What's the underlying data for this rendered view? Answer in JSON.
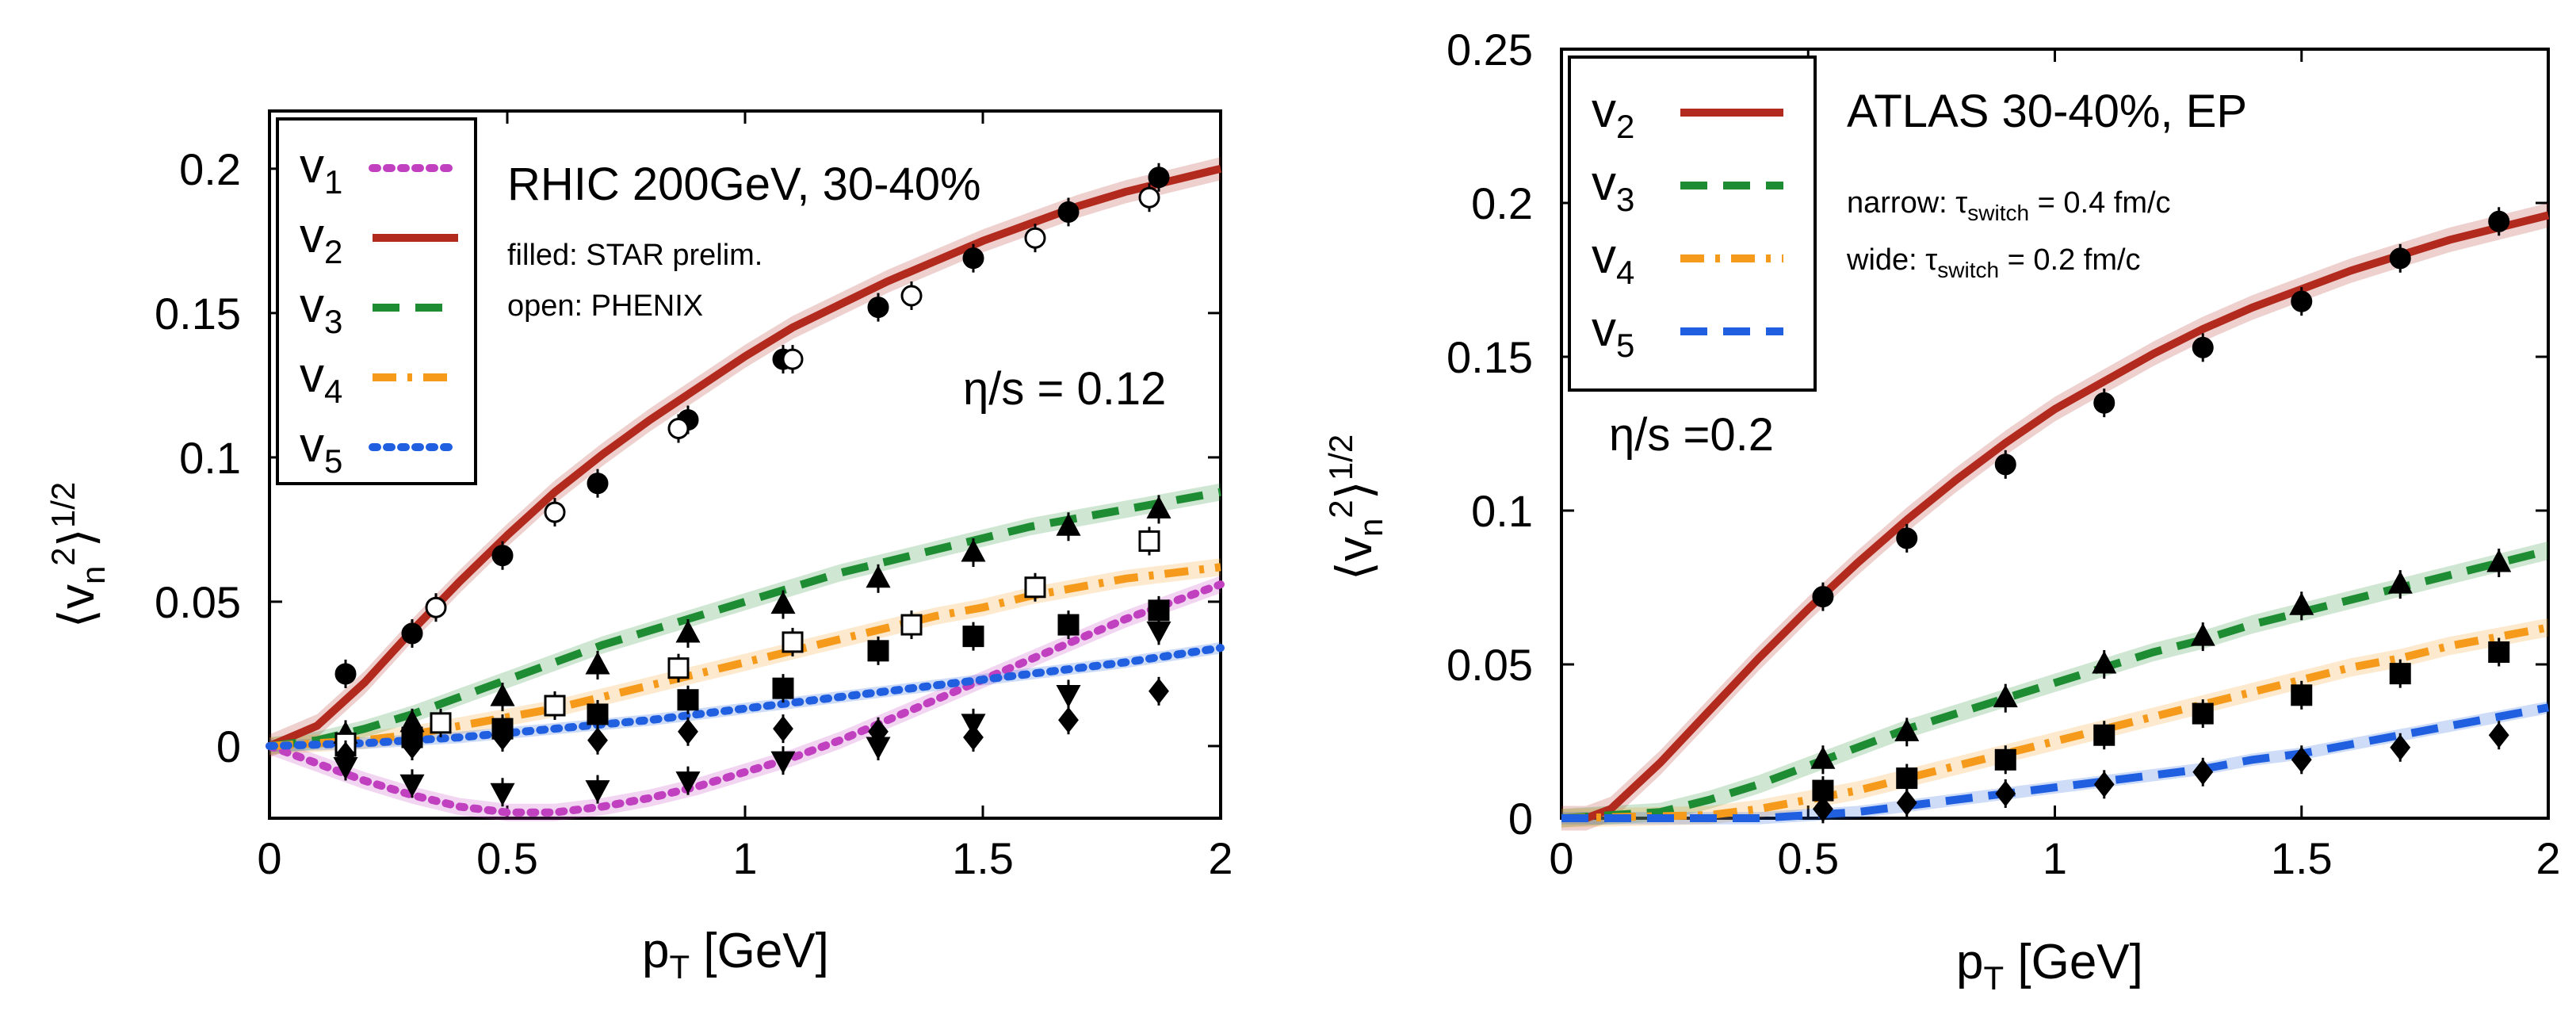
{
  "chart_data": [
    {
      "type": "line",
      "title": "",
      "xlabel": "p_T [GeV]",
      "ylabel": "⟨v_n^2⟩^1/2",
      "xlim": [
        0,
        2
      ],
      "ylim": [
        -0.025,
        0.22
      ],
      "xticks": [
        0,
        0.5,
        1,
        1.5,
        2
      ],
      "xtick_labels": [
        "0",
        "0.5",
        "1",
        "1.5",
        "2"
      ],
      "yticks": [
        0,
        0.05,
        0.1,
        0.15,
        0.2
      ],
      "ytick_labels": [
        "0",
        "0.05",
        "0.1",
        "0.15",
        "0.2"
      ],
      "grid": false,
      "legend_position": "top-left",
      "annotations": {
        "line1": "RHIC 200GeV, 30-40%",
        "line2": "filled: STAR prelim.",
        "line3": "open: PHENIX",
        "eta_s": "η/s = 0.12"
      },
      "series": [
        {
          "name": "v1",
          "sub": "1",
          "color": "#c040c0",
          "dash": "dotted",
          "x": [
            0,
            0.1,
            0.2,
            0.3,
            0.4,
            0.5,
            0.6,
            0.7,
            0.8,
            0.9,
            1.0,
            1.1,
            1.2,
            1.3,
            1.4,
            1.5,
            1.6,
            1.7,
            1.8,
            1.9,
            2.0
          ],
          "y": [
            0,
            -0.006,
            -0.012,
            -0.017,
            -0.021,
            -0.023,
            -0.023,
            -0.021,
            -0.018,
            -0.014,
            -0.009,
            -0.004,
            0.002,
            0.009,
            0.016,
            0.023,
            0.03,
            0.037,
            0.044,
            0.05,
            0.056
          ]
        },
        {
          "name": "v2",
          "sub": "2",
          "color": "#b22a1e",
          "dash": "solid",
          "x": [
            0,
            0.1,
            0.2,
            0.3,
            0.4,
            0.5,
            0.6,
            0.7,
            0.8,
            0.9,
            1.0,
            1.1,
            1.2,
            1.3,
            1.4,
            1.5,
            1.6,
            1.7,
            1.8,
            1.9,
            2.0
          ],
          "y": [
            0,
            0.007,
            0.022,
            0.04,
            0.057,
            0.073,
            0.088,
            0.101,
            0.113,
            0.124,
            0.135,
            0.145,
            0.153,
            0.161,
            0.168,
            0.175,
            0.181,
            0.187,
            0.192,
            0.196,
            0.2
          ]
        },
        {
          "name": "v3",
          "sub": "3",
          "color": "#1e8c32",
          "dash": "dashed",
          "x": [
            0,
            0.1,
            0.2,
            0.3,
            0.4,
            0.5,
            0.6,
            0.7,
            0.8,
            0.9,
            1.0,
            1.1,
            1.2,
            1.3,
            1.4,
            1.5,
            1.6,
            1.7,
            1.8,
            1.9,
            2.0
          ],
          "y": [
            0,
            0.002,
            0.006,
            0.011,
            0.017,
            0.023,
            0.029,
            0.035,
            0.04,
            0.045,
            0.05,
            0.055,
            0.06,
            0.064,
            0.068,
            0.072,
            0.076,
            0.079,
            0.082,
            0.085,
            0.088
          ]
        },
        {
          "name": "v4",
          "sub": "4",
          "color": "#f59a1a",
          "dash": "dashdot",
          "x": [
            0,
            0.1,
            0.2,
            0.3,
            0.4,
            0.5,
            0.6,
            0.7,
            0.8,
            0.9,
            1.0,
            1.1,
            1.2,
            1.3,
            1.4,
            1.5,
            1.6,
            1.7,
            1.8,
            1.9,
            2.0
          ],
          "y": [
            0,
            0.001,
            0.002,
            0.004,
            0.007,
            0.01,
            0.013,
            0.017,
            0.021,
            0.025,
            0.029,
            0.033,
            0.037,
            0.041,
            0.045,
            0.048,
            0.052,
            0.055,
            0.058,
            0.06,
            0.062
          ]
        },
        {
          "name": "v5",
          "sub": "5",
          "color": "#1f5fe0",
          "dash": "dotted",
          "x": [
            0,
            0.2,
            0.4,
            0.6,
            0.8,
            1.0,
            1.2,
            1.4,
            1.6,
            1.8,
            2.0
          ],
          "y": [
            0,
            0.001,
            0.003,
            0.006,
            0.009,
            0.013,
            0.017,
            0.021,
            0.025,
            0.029,
            0.034
          ]
        }
      ],
      "data_points": [
        {
          "group": "v2 filled",
          "marker": "circle",
          "filled": true,
          "x": [
            0.16,
            0.3,
            0.49,
            0.69,
            0.88,
            1.08,
            1.28,
            1.48,
            1.68,
            1.87
          ],
          "y": [
            0.025,
            0.039,
            0.066,
            0.091,
            0.113,
            0.134,
            0.152,
            0.169,
            0.185,
            0.197
          ]
        },
        {
          "group": "v2 open",
          "marker": "circle",
          "filled": false,
          "x": [
            0.35,
            0.6,
            0.86,
            1.1,
            1.35,
            1.61,
            1.85
          ],
          "y": [
            0.048,
            0.081,
            0.11,
            0.134,
            0.156,
            0.176,
            0.19
          ]
        },
        {
          "group": "v3 filled",
          "marker": "triangle",
          "filled": true,
          "x": [
            0.16,
            0.3,
            0.49,
            0.69,
            0.88,
            1.08,
            1.28,
            1.48,
            1.68,
            1.87
          ],
          "y": [
            0.004,
            0.008,
            0.017,
            0.028,
            0.039,
            0.049,
            0.058,
            0.067,
            0.076,
            0.082
          ]
        },
        {
          "group": "v4 filled",
          "marker": "square",
          "filled": true,
          "x": [
            0.16,
            0.3,
            0.49,
            0.69,
            0.88,
            1.08,
            1.28,
            1.48,
            1.68,
            1.87
          ],
          "y": [
            0.0,
            0.003,
            0.006,
            0.011,
            0.016,
            0.02,
            0.033,
            0.038,
            0.042,
            0.047
          ]
        },
        {
          "group": "v4 open",
          "marker": "square",
          "filled": false,
          "x": [
            0.16,
            0.36,
            0.6,
            0.86,
            1.1,
            1.35,
            1.61,
            1.85
          ],
          "y": [
            0.001,
            0.008,
            0.014,
            0.027,
            0.036,
            0.042,
            0.055,
            0.071
          ]
        },
        {
          "group": "v5 filled",
          "marker": "diamond",
          "filled": true,
          "x": [
            0.16,
            0.3,
            0.49,
            0.69,
            0.88,
            1.08,
            1.28,
            1.48,
            1.68,
            1.87
          ],
          "y": [
            -0.003,
            0.0,
            0.003,
            0.002,
            0.005,
            0.006,
            0.005,
            0.003,
            0.009,
            0.019
          ]
        },
        {
          "group": "v1 filled",
          "marker": "triangle-down",
          "filled": true,
          "x": [
            0.16,
            0.3,
            0.49,
            0.69,
            0.88,
            1.08,
            1.28,
            1.48,
            1.68,
            1.87
          ],
          "y": [
            -0.007,
            -0.013,
            -0.016,
            -0.015,
            -0.012,
            -0.005,
            0.0,
            0.008,
            0.018,
            0.04
          ]
        }
      ]
    },
    {
      "type": "line",
      "title": "",
      "xlabel": "p_T [GeV]",
      "ylabel": "⟨v_n^2⟩^1/2",
      "xlim": [
        0,
        2
      ],
      "ylim": [
        0,
        0.25
      ],
      "xticks": [
        0,
        0.5,
        1,
        1.5,
        2
      ],
      "xtick_labels": [
        "0",
        "0.5",
        "1",
        "1.5",
        "2"
      ],
      "yticks": [
        0,
        0.05,
        0.1,
        0.15,
        0.2,
        0.25
      ],
      "ytick_labels": [
        "0",
        "0.05",
        "0.1",
        "0.15",
        "0.2",
        "0.25"
      ],
      "grid": false,
      "legend_position": "top-left",
      "annotations": {
        "line1": "ATLAS 30-40%, EP",
        "narrow": "narrow: τ_switch = 0.4 fm/c",
        "wide": "wide: τ_switch = 0.2 fm/c",
        "eta_s": "η/s =0.2"
      },
      "series": [
        {
          "name": "v2",
          "sub": "2",
          "color": "#b22a1e",
          "dash": "solid",
          "x": [
            0,
            0.05,
            0.1,
            0.2,
            0.3,
            0.4,
            0.5,
            0.6,
            0.7,
            0.8,
            0.9,
            1.0,
            1.1,
            1.2,
            1.3,
            1.4,
            1.5,
            1.6,
            1.7,
            1.8,
            1.9,
            2.0
          ],
          "y": [
            0,
            0.0,
            0.003,
            0.018,
            0.035,
            0.052,
            0.068,
            0.083,
            0.097,
            0.11,
            0.122,
            0.133,
            0.142,
            0.151,
            0.159,
            0.166,
            0.172,
            0.178,
            0.183,
            0.188,
            0.192,
            0.196
          ]
        },
        {
          "name": "v3",
          "sub": "3",
          "color": "#1e8c32",
          "dash": "dashed",
          "x": [
            0,
            0.2,
            0.3,
            0.4,
            0.5,
            0.6,
            0.7,
            0.8,
            0.9,
            1.0,
            1.1,
            1.2,
            1.3,
            1.4,
            1.5,
            1.6,
            1.7,
            1.8,
            1.9,
            2.0
          ],
          "y": [
            0,
            0.002,
            0.006,
            0.011,
            0.017,
            0.023,
            0.029,
            0.034,
            0.039,
            0.044,
            0.049,
            0.054,
            0.058,
            0.063,
            0.067,
            0.071,
            0.075,
            0.079,
            0.083,
            0.087
          ]
        },
        {
          "name": "v4",
          "sub": "4",
          "color": "#f59a1a",
          "dash": "dashdot",
          "x": [
            0,
            0.3,
            0.4,
            0.5,
            0.6,
            0.7,
            0.8,
            0.9,
            1.0,
            1.1,
            1.2,
            1.3,
            1.4,
            1.5,
            1.6,
            1.7,
            1.8,
            1.9,
            2.0
          ],
          "y": [
            0,
            0.001,
            0.003,
            0.006,
            0.009,
            0.013,
            0.017,
            0.021,
            0.025,
            0.029,
            0.033,
            0.037,
            0.041,
            0.045,
            0.049,
            0.052,
            0.056,
            0.059,
            0.062
          ]
        },
        {
          "name": "v5",
          "sub": "5",
          "color": "#1f5fe0",
          "dash": "dashed",
          "x": [
            0,
            0.4,
            0.5,
            0.6,
            0.7,
            0.8,
            0.9,
            1.0,
            1.1,
            1.2,
            1.3,
            1.4,
            1.5,
            1.6,
            1.7,
            1.8,
            1.9,
            2.0
          ],
          "y": [
            0,
            0.0,
            0.001,
            0.002,
            0.004,
            0.006,
            0.008,
            0.01,
            0.012,
            0.014,
            0.016,
            0.019,
            0.021,
            0.024,
            0.027,
            0.03,
            0.033,
            0.036
          ]
        }
      ],
      "data_points": [
        {
          "group": "v2 filled",
          "marker": "circle",
          "filled": true,
          "x": [
            0.53,
            0.7,
            0.9,
            1.1,
            1.3,
            1.5,
            1.7,
            1.9
          ],
          "y": [
            0.072,
            0.091,
            0.115,
            0.135,
            0.153,
            0.168,
            0.182,
            0.194
          ]
        },
        {
          "group": "v3 filled",
          "marker": "triangle",
          "filled": true,
          "x": [
            0.53,
            0.7,
            0.9,
            1.1,
            1.3,
            1.5,
            1.7,
            1.9
          ],
          "y": [
            0.019,
            0.028,
            0.039,
            0.05,
            0.059,
            0.069,
            0.076,
            0.083
          ]
        },
        {
          "group": "v4 filled",
          "marker": "square",
          "filled": true,
          "x": [
            0.53,
            0.7,
            0.9,
            1.1,
            1.3,
            1.5,
            1.7,
            1.9
          ],
          "y": [
            0.009,
            0.013,
            0.019,
            0.027,
            0.034,
            0.04,
            0.047,
            0.054
          ]
        },
        {
          "group": "v5 filled",
          "marker": "diamond",
          "filled": true,
          "x": [
            0.53,
            0.7,
            0.9,
            1.1,
            1.3,
            1.5,
            1.7,
            1.9
          ],
          "y": [
            0.003,
            0.005,
            0.008,
            0.011,
            0.015,
            0.019,
            0.023,
            0.027
          ]
        }
      ]
    }
  ]
}
